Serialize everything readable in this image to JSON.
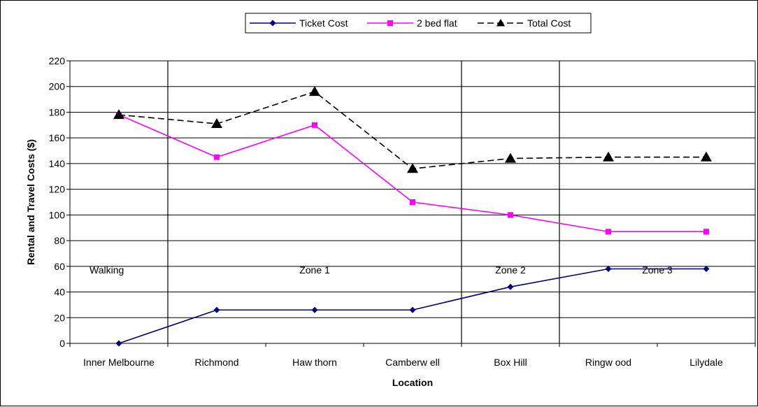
{
  "chart_data": {
    "type": "line",
    "categories": [
      "Inner Melbourne",
      "Richmond",
      "Haw thorn",
      "Camberw ell",
      "Box Hill",
      "Ringw ood",
      "Lilydale"
    ],
    "series": [
      {
        "name": "Ticket Cost",
        "values": [
          0,
          26,
          26,
          26,
          44,
          58,
          58
        ],
        "color": "#000080",
        "marker": "diamond",
        "dash": "solid"
      },
      {
        "name": "2 bed flat",
        "values": [
          178,
          145,
          170,
          110,
          100,
          87,
          87
        ],
        "color": "#FF00FF",
        "marker": "square",
        "dash": "solid"
      },
      {
        "name": "Total Cost",
        "values": [
          178,
          171,
          196,
          136,
          144,
          145,
          145
        ],
        "color": "#000000",
        "marker": "triangle",
        "dash": "dashed"
      }
    ],
    "xlabel": "Location",
    "ylabel": "Rental and Travel Costs ($)",
    "ylim": [
      0,
      220
    ],
    "yticks": [
      0,
      20,
      40,
      60,
      80,
      100,
      120,
      140,
      160,
      180,
      200,
      220
    ],
    "grid": true,
    "legend_position": "top-center",
    "zone_dividers_after": [
      0,
      3,
      4
    ],
    "zone_labels": [
      {
        "text": "Walking",
        "category_index": 0
      },
      {
        "text": "Zone 1",
        "category_index": 2
      },
      {
        "text": "Zone 2",
        "category_index": 4
      },
      {
        "text": "Zone 3",
        "category_index": 5.5
      }
    ]
  }
}
